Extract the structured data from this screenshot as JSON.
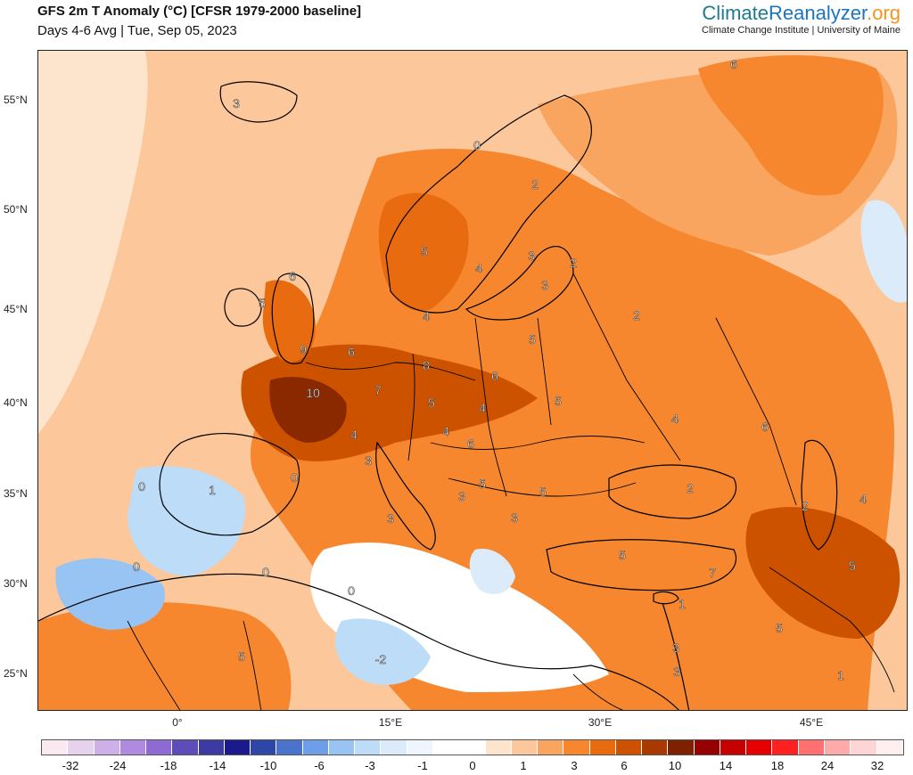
{
  "header": {
    "title": "GFS 2m T Anomaly (°C) [CFSR 1979-2000 baseline]",
    "subtitle": "Days 4-6 Avg | Tue, Sep 05, 2023"
  },
  "brand": {
    "name_part1": "Climate",
    "name_part2": "Reanalyzer",
    "name_part3": ".org",
    "affiliation": "Climate Change Institute | University of Maine"
  },
  "axes": {
    "lat_labels": [
      "55°N",
      "50°N",
      "45°N",
      "40°N",
      "35°N",
      "30°N",
      "25°N"
    ],
    "lon_labels": [
      "0°",
      "15°E",
      "30°E",
      "45°E"
    ]
  },
  "colorbar": {
    "labels": [
      "-32",
      "-24",
      "-18",
      "-14",
      "-10",
      "-6",
      "-3",
      "-1",
      "0",
      "1",
      "3",
      "6",
      "10",
      "14",
      "18",
      "24",
      "32"
    ],
    "colors": [
      "#fbe9f1",
      "#e7d2ee",
      "#cdb0e8",
      "#b08ade",
      "#8e6bd2",
      "#5e4db8",
      "#3d3aa4",
      "#1a1a8c",
      "#2e46a8",
      "#4a73cc",
      "#6f9ee8",
      "#98c4f4",
      "#bcdcf8",
      "#dcebfa",
      "#eef5fc",
      "#ffffff",
      "#ffffff",
      "#fde4cc",
      "#fcc79a",
      "#f9a55f",
      "#f6872e",
      "#e96b10",
      "#cc5200",
      "#a83a00",
      "#7e2100",
      "#960000",
      "#c40000",
      "#e60000",
      "#ff2020",
      "#ff7070",
      "#ffaaaa",
      "#ffd4d4",
      "#ffeeee"
    ]
  },
  "map_colors": {
    "background": "#fcc79a",
    "land_warm": "#f6872e",
    "land_hot": "#cc5200",
    "land_hottest": "#8a2800",
    "land_mild": "#f9a55f",
    "neutral": "#ffffff",
    "cool": "#bcdcf8",
    "cooler": "#6f9ee8",
    "coast": "#000000"
  },
  "map_numbers": [
    "6",
    "3",
    "0",
    "2",
    "5",
    "4",
    "3",
    "2",
    "6",
    "5",
    "3",
    "4",
    "9",
    "6",
    "5",
    "2",
    "8",
    "6",
    "10",
    "7",
    "5",
    "4",
    "5",
    "4",
    "6",
    "4",
    "4",
    "6",
    "3",
    "0",
    "1",
    "0",
    "2",
    "5",
    "3",
    "5",
    "2",
    "4",
    "3",
    "3",
    "0",
    "0",
    "5",
    "7",
    "5",
    "1",
    "0",
    "-2",
    "5",
    "3",
    "3",
    "5",
    "1"
  ]
}
